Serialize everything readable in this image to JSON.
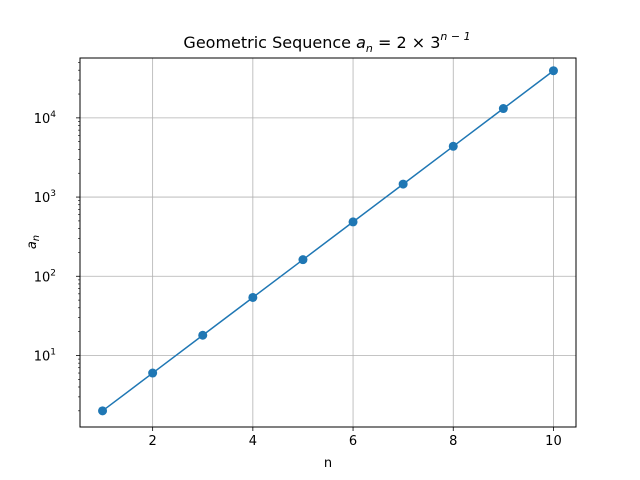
{
  "chart_data": {
    "type": "line",
    "title_main": "Geometric Sequence",
    "title_formula_base": "a",
    "title_formula_sub": "n",
    "title_formula_rest": " = 2 × 3",
    "title_formula_exp": "n − 1",
    "xlabel": "n",
    "ylabel_base": "a",
    "ylabel_sub": "n",
    "yscale": "log",
    "grid": true,
    "xlim": [
      0.55,
      10.45
    ],
    "ylim": [
      1.25,
      57000
    ],
    "x_ticks": [
      2,
      4,
      6,
      8,
      10
    ],
    "y_ticks": [
      {
        "value": 10,
        "base": "10",
        "exp": "1"
      },
      {
        "value": 100,
        "base": "10",
        "exp": "2"
      },
      {
        "value": 1000,
        "base": "10",
        "exp": "3"
      },
      {
        "value": 10000,
        "base": "10",
        "exp": "4"
      }
    ],
    "series": [
      {
        "color": "#1f77b4",
        "marker": "circle",
        "x": [
          1,
          2,
          3,
          4,
          5,
          6,
          7,
          8,
          9,
          10
        ],
        "y": [
          2,
          6,
          18,
          54,
          162,
          486,
          1458,
          4374,
          13122,
          39366
        ]
      }
    ]
  }
}
